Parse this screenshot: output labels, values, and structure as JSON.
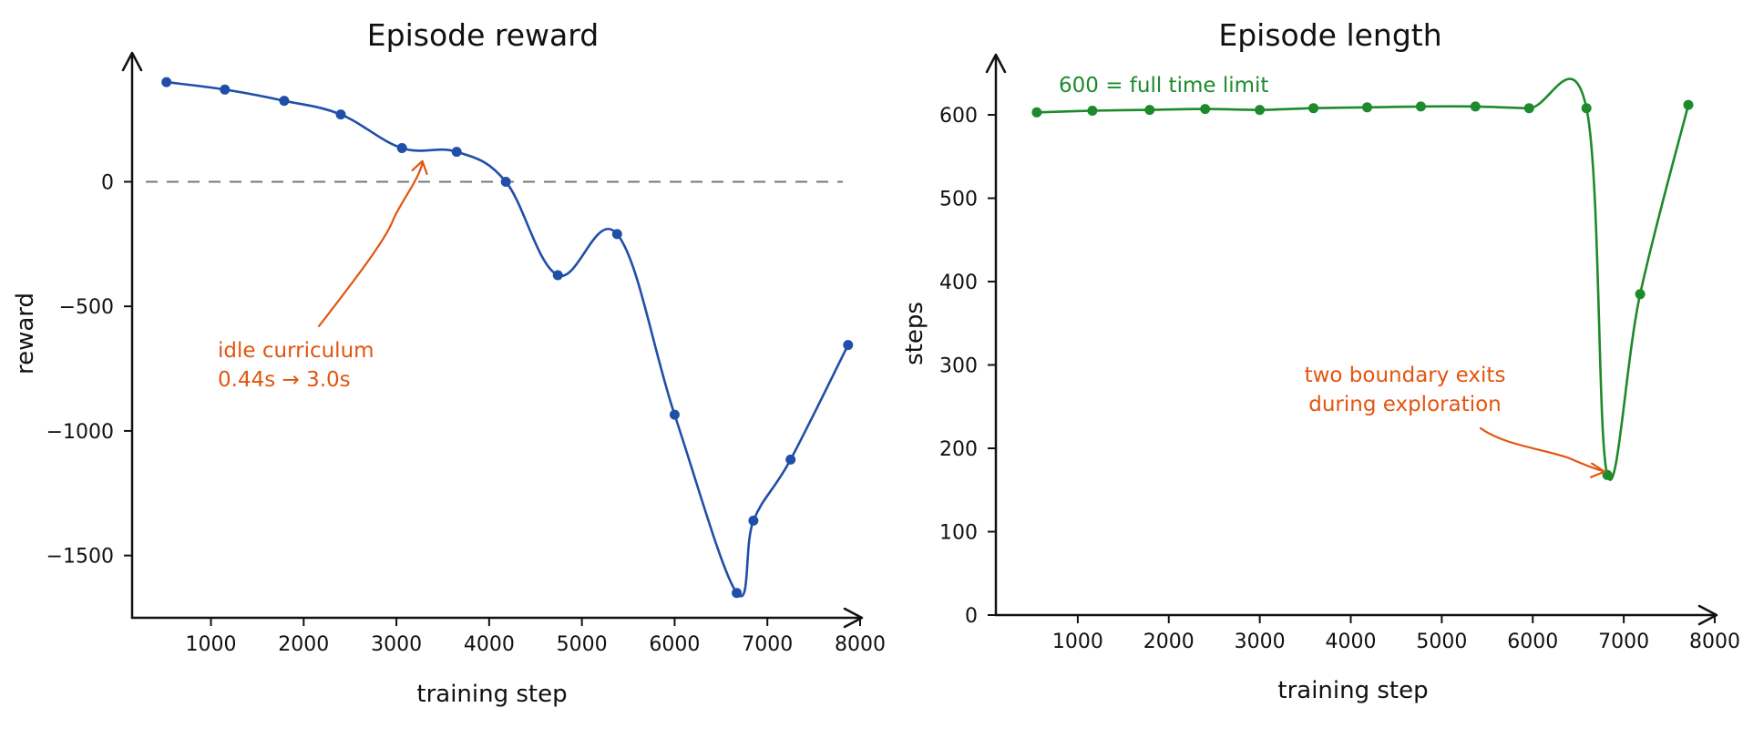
{
  "colors": {
    "reward": "#1f4fa8",
    "length": "#1d8a2c",
    "annotation": "#e2550f",
    "zero_line": "#777777",
    "axis": "#111111"
  },
  "chart_data": [
    {
      "type": "line",
      "title": "Episode reward",
      "xlabel": "training step",
      "ylabel": "reward",
      "xlim": [
        150,
        8000
      ],
      "ylim": [
        -1750,
        510
      ],
      "xticks": [
        1000,
        2000,
        3000,
        4000,
        5000,
        6000,
        7000,
        8000
      ],
      "xtick_labels": [
        "1000",
        "2000",
        "3000",
        "4000",
        "5000",
        "6000",
        "7000",
        "8000"
      ],
      "yticks": [
        0,
        -500,
        -1000,
        -1500
      ],
      "ytick_labels": [
        "0",
        "−500",
        "−1000",
        "−1500"
      ],
      "grid": false,
      "reference_line": {
        "y": 0,
        "style": "dashed"
      },
      "series": [
        {
          "color": "#1f4fa8",
          "x": [
            520,
            1150,
            1790,
            2400,
            3060,
            3650,
            4180,
            4740,
            5380,
            6000,
            6670,
            6850,
            7250,
            7870
          ],
          "y": [
            400,
            370,
            325,
            270,
            135,
            120,
            0,
            -375,
            -210,
            -935,
            -1650,
            -1360,
            -1115,
            -655
          ]
        }
      ],
      "annotations": [
        {
          "lines": [
            "idle curriculum",
            "0.44s → 3.0s"
          ],
          "target": {
            "x": 3280,
            "y": 90
          }
        }
      ]
    },
    {
      "type": "line",
      "title": "Episode length",
      "xlabel": "training step",
      "ylabel": "steps",
      "xlim": [
        100,
        8000
      ],
      "ylim": [
        0,
        670
      ],
      "xticks": [
        1000,
        2000,
        3000,
        4000,
        5000,
        6000,
        7000,
        8000
      ],
      "xtick_labels": [
        "1000",
        "2000",
        "3000",
        "4000",
        "5000",
        "6000",
        "7000",
        "8000"
      ],
      "yticks": [
        0,
        100,
        200,
        300,
        400,
        500,
        600
      ],
      "ytick_labels": [
        "0",
        "100",
        "200",
        "300",
        "400",
        "500",
        "600"
      ],
      "grid": false,
      "series": [
        {
          "color": "#1d8a2c",
          "x": [
            550,
            1160,
            1790,
            2400,
            3000,
            3590,
            4180,
            4770,
            5370,
            5960,
            6590,
            6820,
            7180,
            7710
          ],
          "y": [
            603,
            605,
            606,
            607,
            606,
            608,
            609,
            610,
            610,
            608,
            608,
            168,
            385,
            612
          ]
        }
      ],
      "annotations": [
        {
          "lines": [
            "600 = full time limit"
          ],
          "target": null
        },
        {
          "lines": [
            "two boundary exits",
            "during exploration"
          ],
          "target": {
            "x": 6790,
            "y": 172
          }
        }
      ]
    }
  ]
}
